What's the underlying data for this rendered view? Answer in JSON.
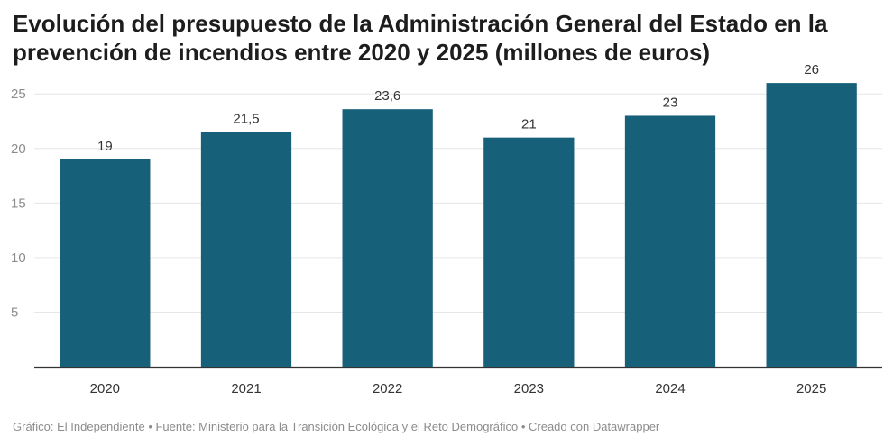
{
  "header": {
    "title": "Evolución del presupuesto de la Administración General del Estado en la prevención de incendios entre 2020 y 2025 (millones de euros)"
  },
  "footer": {
    "text": "Gráfico: El Independiente • Fuente: Ministerio para la Transición Ecológica y el Reto Demográfico • Creado con Datawrapper"
  },
  "chart_data": {
    "type": "bar",
    "title": "Evolución del presupuesto de la Administración General del Estado en la prevención de incendios entre 2020 y 2025 (millones de euros)",
    "xlabel": "",
    "ylabel": "",
    "categories": [
      "2020",
      "2021",
      "2022",
      "2023",
      "2024",
      "2025"
    ],
    "values": [
      19,
      21.5,
      23.6,
      21,
      23,
      26
    ],
    "value_labels": [
      "19",
      "21,5",
      "23,6",
      "21",
      "23",
      "26"
    ],
    "ylim": [
      0,
      27
    ],
    "yticks": [
      5,
      10,
      15,
      20,
      25
    ],
    "grid": true,
    "legend": "none",
    "bar_color": "#17607a",
    "gridline_color": "#e6e6e6",
    "axis_color": "#333333"
  }
}
